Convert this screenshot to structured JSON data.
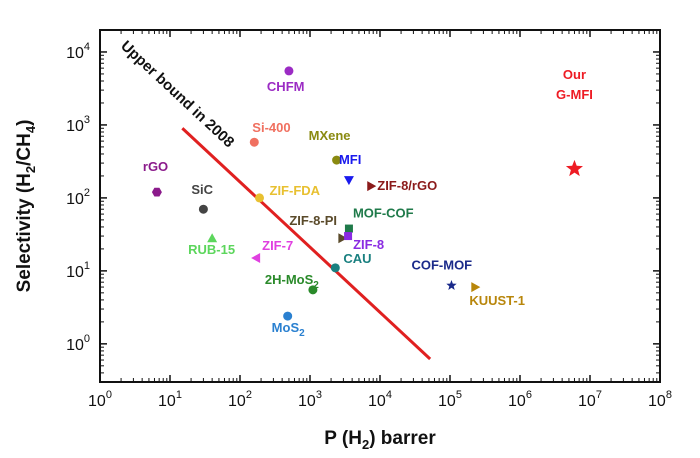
{
  "chart_data": {
    "type": "scatter",
    "xlabel": {
      "prefix": "P (H",
      "sub": "2",
      "suffix": ") barrer"
    },
    "ylabel": {
      "prefix": "Selectivity (H",
      "sub1": "2",
      "mid": "/CH",
      "sub2": "4",
      "suffix": ")"
    },
    "xscale": "log",
    "yscale": "log",
    "xlim": [
      1,
      100000000
    ],
    "ylim": [
      0.3,
      20000
    ],
    "x_ticks": [
      {
        "value": 1,
        "exp": "0"
      },
      {
        "value": 10,
        "exp": "1"
      },
      {
        "value": 100,
        "exp": "2"
      },
      {
        "value": 1000,
        "exp": "3"
      },
      {
        "value": 10000,
        "exp": "4"
      },
      {
        "value": 100000,
        "exp": "5"
      },
      {
        "value": 1000000,
        "exp": "6"
      },
      {
        "value": 10000000,
        "exp": "7"
      },
      {
        "value": 100000000,
        "exp": "8"
      }
    ],
    "y_ticks": [
      {
        "value": 1,
        "exp": "0"
      },
      {
        "value": 10,
        "exp": "1"
      },
      {
        "value": 100,
        "exp": "2"
      },
      {
        "value": 1000,
        "exp": "3"
      },
      {
        "value": 10000,
        "exp": "4"
      }
    ],
    "upper_bound": {
      "label": "Upper bound in 2008",
      "color": "#e02020",
      "x": [
        15,
        52000
      ],
      "y": [
        900,
        0.62
      ]
    },
    "points": [
      {
        "label": "CHFM",
        "x": 500,
        "y": 5500,
        "color": "#9b2bc4",
        "marker": "circle"
      },
      {
        "label": "Si-400",
        "x": 160,
        "y": 580,
        "color": "#f07060",
        "marker": "circle"
      },
      {
        "label": "MXene",
        "x": 2400,
        "y": 330,
        "color": "#8a8a10",
        "marker": "circle"
      },
      {
        "label": "MFI",
        "x": 3600,
        "y": 175,
        "color": "#1a1aee",
        "marker": "triangle-down"
      },
      {
        "label": "ZIF-8/rGO",
        "x": 7500,
        "y": 145,
        "color": "#8b1a1a",
        "marker": "triangle-right"
      },
      {
        "label": "rGO",
        "x": 6.5,
        "y": 120,
        "color": "#8b1a8b",
        "marker": "hexagon"
      },
      {
        "label": "SiC",
        "x": 30,
        "y": 70,
        "color": "#444444",
        "marker": "circle"
      },
      {
        "label": "ZIF-FDA",
        "x": 190,
        "y": 100,
        "color": "#e8c030",
        "marker": "circle"
      },
      {
        "label": "ZIF-8-PI",
        "x": 2900,
        "y": 28,
        "color": "#5a4a2a",
        "marker": "triangle-right"
      },
      {
        "label": "MOF-COF",
        "x": 3600,
        "y": 38,
        "color": "#1f7a4a",
        "marker": "square"
      },
      {
        "label": "ZIF-8",
        "x": 3500,
        "y": 30,
        "color": "#8a2be2",
        "marker": "square"
      },
      {
        "label": "RUB-15",
        "x": 40,
        "y": 28,
        "color": "#5cd65c",
        "marker": "triangle-up"
      },
      {
        "label": "ZIF-7",
        "x": 170,
        "y": 15,
        "color": "#e040e0",
        "marker": "triangle-left"
      },
      {
        "label": "CAU",
        "x": 2300,
        "y": 11,
        "color": "#1a8080",
        "marker": "circle"
      },
      {
        "label": "2H-MoS2",
        "x": 1100,
        "y": 5.5,
        "color": "#2a8a2a",
        "marker": "circle"
      },
      {
        "label": "MoS2",
        "x": 480,
        "y": 2.4,
        "color": "#2a80d0",
        "marker": "circle"
      },
      {
        "label": "COF-MOF",
        "x": 105000,
        "y": 6.3,
        "color": "#1a2a8a",
        "marker": "star"
      },
      {
        "label": "KUUST-1",
        "x": 230000,
        "y": 6,
        "color": "#b8860b",
        "marker": "triangle-right"
      },
      {
        "label": "Our G-MFI",
        "x": 6000000,
        "y": 250,
        "color": "#ee1c24",
        "marker": "star"
      }
    ]
  }
}
